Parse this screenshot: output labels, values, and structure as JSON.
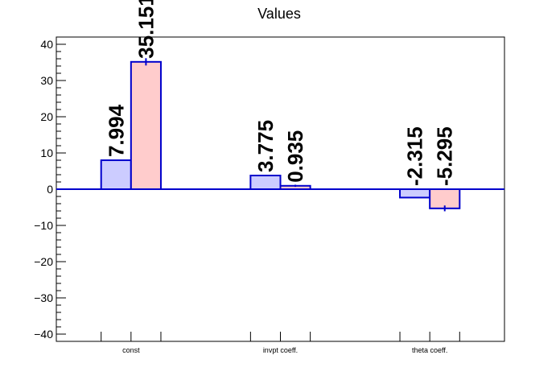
{
  "chart_data": {
    "type": "bar",
    "title": "Values",
    "xlabel": "",
    "ylabel": "",
    "categories": [
      "const",
      "invpt coeff.",
      "theta coeff."
    ],
    "series": [
      {
        "values": [
          7.994,
          3.775,
          -2.315
        ],
        "errors": [
          0,
          0,
          0
        ],
        "value_labels": [
          "7.994",
          "3.775",
          "-2.315"
        ]
      },
      {
        "values": [
          35.151,
          0.935,
          -5.295
        ],
        "errors": [
          1.0,
          0.3,
          0.8
        ],
        "value_labels": [
          "35.151",
          "0.935",
          "-5.295"
        ]
      }
    ],
    "ylim": [
      -42,
      42
    ],
    "yticks": [
      -40,
      -30,
      -20,
      -10,
      0,
      10,
      20,
      30,
      40
    ],
    "ytick_labels": [
      "−40",
      "−30",
      "−20",
      "−10",
      "0",
      "10",
      "20",
      "30",
      "40"
    ],
    "grid": false,
    "legend": "none",
    "colors": {
      "series_fill": [
        "#ccccff",
        "#ffcccc"
      ],
      "bar_stroke": "#0000cc",
      "zero_line": "#0000cc",
      "axis": "#000000"
    }
  }
}
